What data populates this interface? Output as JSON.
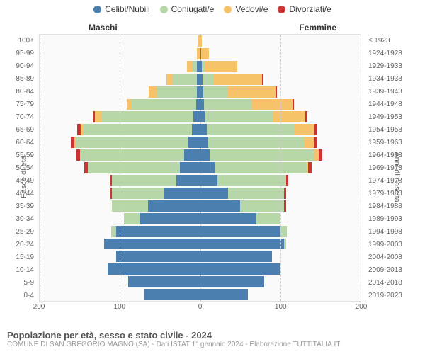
{
  "chart": {
    "type": "population-pyramid",
    "title": "Popolazione per età, sesso e stato civile - 2024",
    "subtitle": "COMUNE DI SAN GREGORIO MAGNO (SA) - Dati ISTAT 1° gennaio 2024 - Elaborazione TUTTITALIA.IT",
    "male_label": "Maschi",
    "female_label": "Femmine",
    "y_left_title": "Fasce di età",
    "y_right_title": "Anni di nascita",
    "xlim": 200,
    "x_ticks": [
      200,
      100,
      0,
      100,
      200
    ],
    "background_color": "#fafafa",
    "grid_color": "#cccccc",
    "legend": [
      {
        "label": "Celibi/Nubili",
        "color": "#4a7fb0"
      },
      {
        "label": "Coniugati/e",
        "color": "#b7d7a8"
      },
      {
        "label": "Vedovi/e",
        "color": "#f6c36a"
      },
      {
        "label": "Divorziati/e",
        "color": "#cc3333"
      }
    ],
    "colors": {
      "single": "#4a7fb0",
      "married": "#b7d7a8",
      "widowed": "#f6c36a",
      "divorced": "#cc3333"
    },
    "rows": [
      {
        "age": "100+",
        "birth": "≤ 1923",
        "m": [
          0,
          0,
          2,
          0
        ],
        "f": [
          0,
          0,
          2,
          0
        ]
      },
      {
        "age": "95-99",
        "birth": "1924-1928",
        "m": [
          0,
          0,
          4,
          0
        ],
        "f": [
          1,
          0,
          10,
          0
        ]
      },
      {
        "age": "90-94",
        "birth": "1929-1933",
        "m": [
          4,
          6,
          6,
          0
        ],
        "f": [
          2,
          4,
          40,
          0
        ]
      },
      {
        "age": "85-89",
        "birth": "1934-1938",
        "m": [
          4,
          30,
          8,
          0
        ],
        "f": [
          3,
          14,
          60,
          2
        ]
      },
      {
        "age": "80-84",
        "birth": "1939-1943",
        "m": [
          4,
          50,
          10,
          0
        ],
        "f": [
          4,
          30,
          60,
          2
        ]
      },
      {
        "age": "75-79",
        "birth": "1944-1948",
        "m": [
          5,
          80,
          6,
          0
        ],
        "f": [
          5,
          60,
          50,
          2
        ]
      },
      {
        "age": "70-74",
        "birth": "1949-1953",
        "m": [
          8,
          115,
          8,
          2
        ],
        "f": [
          6,
          85,
          40,
          3
        ]
      },
      {
        "age": "65-69",
        "birth": "1954-1958",
        "m": [
          10,
          135,
          4,
          4
        ],
        "f": [
          8,
          110,
          25,
          3
        ]
      },
      {
        "age": "60-64",
        "birth": "1959-1963",
        "m": [
          15,
          140,
          2,
          4
        ],
        "f": [
          10,
          120,
          12,
          4
        ]
      },
      {
        "age": "55-59",
        "birth": "1964-1968",
        "m": [
          20,
          130,
          0,
          4
        ],
        "f": [
          12,
          130,
          6,
          4
        ]
      },
      {
        "age": "50-54",
        "birth": "1969-1973",
        "m": [
          25,
          115,
          0,
          4
        ],
        "f": [
          18,
          115,
          2,
          4
        ]
      },
      {
        "age": "45-49",
        "birth": "1974-1978",
        "m": [
          30,
          80,
          0,
          2
        ],
        "f": [
          22,
          85,
          0,
          3
        ]
      },
      {
        "age": "40-44",
        "birth": "1979-1983",
        "m": [
          45,
          65,
          0,
          2
        ],
        "f": [
          35,
          70,
          0,
          2
        ]
      },
      {
        "age": "35-39",
        "birth": "1984-1988",
        "m": [
          65,
          45,
          0,
          0
        ],
        "f": [
          50,
          55,
          0,
          2
        ]
      },
      {
        "age": "30-34",
        "birth": "1989-1993",
        "m": [
          75,
          20,
          0,
          0
        ],
        "f": [
          70,
          30,
          0,
          0
        ]
      },
      {
        "age": "25-29",
        "birth": "1994-1998",
        "m": [
          105,
          6,
          0,
          0
        ],
        "f": [
          100,
          8,
          0,
          0
        ]
      },
      {
        "age": "20-24",
        "birth": "1999-2003",
        "m": [
          120,
          0,
          0,
          0
        ],
        "f": [
          105,
          2,
          0,
          0
        ]
      },
      {
        "age": "15-19",
        "birth": "2004-2008",
        "m": [
          105,
          0,
          0,
          0
        ],
        "f": [
          90,
          0,
          0,
          0
        ]
      },
      {
        "age": "10-14",
        "birth": "2009-2013",
        "m": [
          115,
          0,
          0,
          0
        ],
        "f": [
          100,
          0,
          0,
          0
        ]
      },
      {
        "age": "5-9",
        "birth": "2014-2018",
        "m": [
          90,
          0,
          0,
          0
        ],
        "f": [
          80,
          0,
          0,
          0
        ]
      },
      {
        "age": "0-4",
        "birth": "2019-2023",
        "m": [
          70,
          0,
          0,
          0
        ],
        "f": [
          60,
          0,
          0,
          0
        ]
      }
    ]
  }
}
